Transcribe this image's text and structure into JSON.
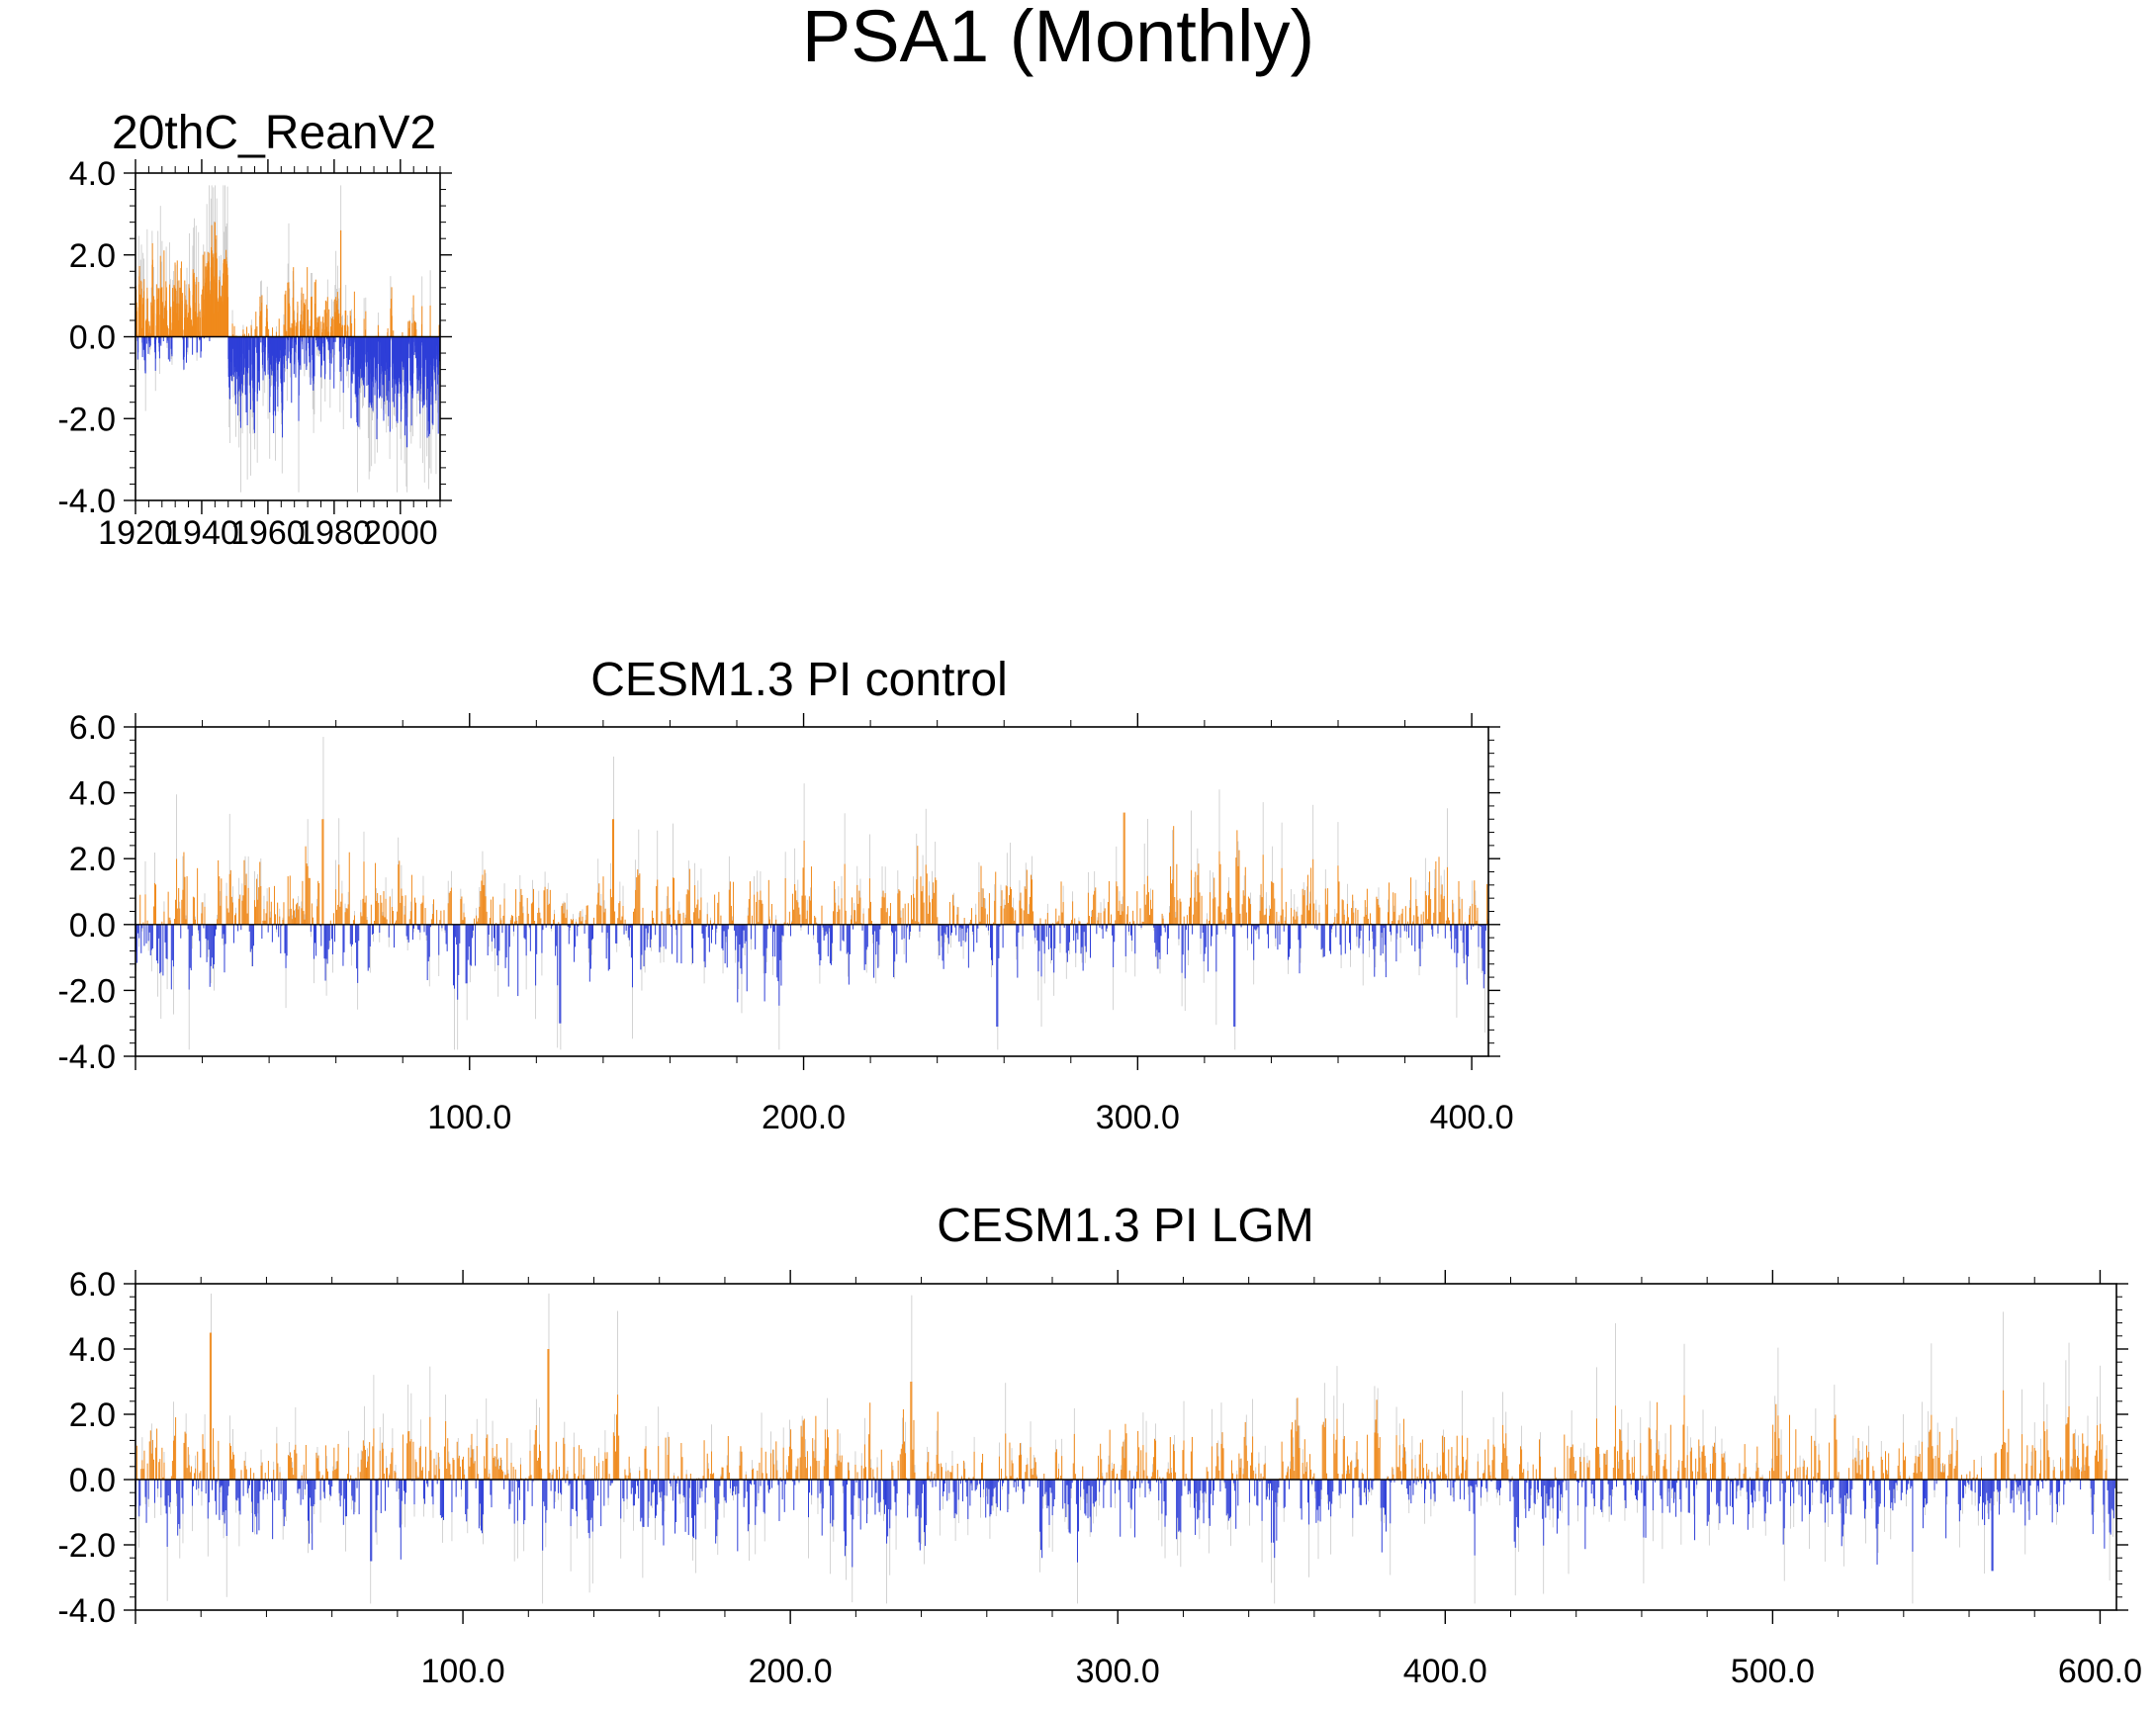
{
  "figure_title": "PSA1 (Monthly)",
  "colors": {
    "positive": "#f08a1c",
    "negative": "#2e3fd8",
    "envelope": "#c8c8c8"
  },
  "chart_data": [
    {
      "type": "bar",
      "id": "rean",
      "title": "20thC_ReanV2",
      "xlim": [
        1920,
        2012
      ],
      "ylim": [
        -4.0,
        4.0
      ],
      "xticks": [
        1920,
        1940,
        1960,
        1980,
        2000
      ],
      "xtick_labels": [
        "1920",
        "1940",
        "1960",
        "1980",
        "2000"
      ],
      "yticks": [
        -4.0,
        -2.0,
        0.0,
        2.0,
        4.0
      ],
      "ytick_labels": [
        "-4.0",
        "-2.0",
        "0.0",
        "2.0",
        "4.0"
      ],
      "n_points": 1104,
      "amplitude": 0.8,
      "seed": 11,
      "segments": [
        {
          "x0": 1920,
          "x1": 1941,
          "offset": 0.55
        },
        {
          "x0": 1941,
          "x1": 1948,
          "offset": 1.2
        },
        {
          "x0": 1948,
          "x1": 1965,
          "offset": -0.55
        },
        {
          "x0": 1965,
          "x1": 1985,
          "offset": 0.05
        },
        {
          "x0": 1985,
          "x1": 2012,
          "offset": -0.8
        }
      ],
      "peaks": [
        {
          "x": 1944,
          "y": 2.8
        },
        {
          "x": 1982,
          "y": 2.6
        },
        {
          "x": 2002,
          "y": -2.7
        }
      ]
    },
    {
      "type": "bar",
      "id": "control",
      "title": "CESM1.3 PI control",
      "xlim": [
        0,
        405
      ],
      "ylim": [
        -4.0,
        6.0
      ],
      "xticks": [
        100,
        200,
        300,
        400
      ],
      "xtick_labels": [
        "100.0",
        "200.0",
        "300.0",
        "400.0"
      ],
      "yticks": [
        -4.0,
        -2.0,
        0.0,
        2.0,
        4.0,
        6.0
      ],
      "ytick_labels": [
        "-4.0",
        "-2.0",
        "0.0",
        "2.0",
        "4.0",
        "6.0"
      ],
      "n_points": 1300,
      "amplitude": 1.0,
      "seed": 23,
      "segments": [],
      "peaks": [
        {
          "x": 56,
          "y": 3.2
        },
        {
          "x": 143,
          "y": 3.2
        },
        {
          "x": 296,
          "y": 3.4
        },
        {
          "x": 127,
          "y": -3.0
        },
        {
          "x": 258,
          "y": -3.1
        },
        {
          "x": 329,
          "y": -3.1
        }
      ]
    },
    {
      "type": "bar",
      "id": "lgm",
      "title": "CESM1.3 PI LGM",
      "xlim": [
        0,
        605
      ],
      "ylim": [
        -4.0,
        6.0
      ],
      "xticks": [
        100,
        200,
        300,
        400,
        500,
        600
      ],
      "xtick_labels": [
        "100.0",
        "200.0",
        "300.0",
        "400.0",
        "500.0",
        "600.0"
      ],
      "yticks": [
        -4.0,
        -2.0,
        0.0,
        2.0,
        4.0,
        6.0
      ],
      "ytick_labels": [
        "-4.0",
        "-2.0",
        "0.0",
        "2.0",
        "4.0",
        "6.0"
      ],
      "n_points": 1900,
      "amplitude": 1.0,
      "seed": 37,
      "segments": [],
      "peaks": [
        {
          "x": 23,
          "y": 4.5
        },
        {
          "x": 126,
          "y": 4.0
        },
        {
          "x": 237,
          "y": 3.0
        },
        {
          "x": 72,
          "y": -2.5
        },
        {
          "x": 567,
          "y": -2.8
        }
      ]
    }
  ]
}
